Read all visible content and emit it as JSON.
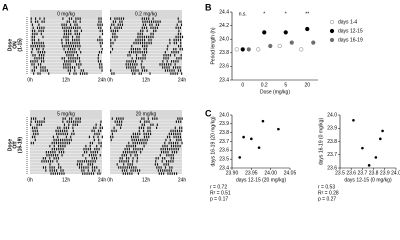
{
  "panel_labels": [
    "A",
    "B",
    "C"
  ],
  "actograms": {
    "titles": [
      "0 mg/kg",
      "0.2 mg/kg",
      "5 mg/kg",
      "20 mg/kg"
    ],
    "time_ticks": [
      "0h",
      "12h",
      "24h"
    ],
    "on_label": [
      "Dose",
      "ON",
      "(1-15)"
    ],
    "off_label": [
      "Dose",
      "Off",
      "(16-19)"
    ]
  },
  "chart_data": [
    {
      "type": "dot",
      "categories": [
        "0",
        "0.2",
        "5",
        "20"
      ],
      "xlabel": "Dose (mg/kg)",
      "ylabel": "Period length (h)",
      "ylim": [
        23.4,
        24.4
      ],
      "yticks": [
        23.4,
        23.6,
        23.8,
        {
          "value": 24,
          "label": "24.0"
        },
        24.2,
        24.4
      ],
      "series": [
        {
          "name": "days 1-4",
          "color": "#9a9a9a",
          "values": [
            23.85,
            23.85,
            23.9,
            23.85
          ]
        },
        {
          "name": "days 12-15",
          "color": "#000000",
          "values": [
            23.85,
            24.1,
            24.1,
            24.15
          ]
        },
        {
          "name": "days 16-19",
          "color": "#6e6e6e",
          "values": [
            23.85,
            23.9,
            23.95,
            23.95
          ]
        }
      ],
      "annotations": [
        "n.s.",
        "*",
        "*",
        "**"
      ],
      "legend": "right"
    },
    {
      "type": "scatter",
      "xlabel": "days 12-15 (20 mg/kg)",
      "ylabel": "days 16-19 (20 mg/kg)",
      "x": [
        23.92,
        23.93,
        23.95,
        23.97,
        23.98,
        24.02
      ],
      "values": [
        23.52,
        23.75,
        23.73,
        23.63,
        23.93,
        23.84
      ],
      "color": "#000000",
      "xlim": [
        23.9,
        24.05
      ],
      "xticks": [
        {
          "value": 23.9,
          "label": "23.90"
        },
        23.95,
        {
          "value": 24,
          "label": "24.00"
        },
        24.05
      ],
      "ylim": [
        23.4,
        24.0
      ],
      "yticks": [
        23.4,
        23.5,
        23.6,
        23.7,
        23.8,
        23.9,
        {
          "value": 24,
          "label": "24.0"
        }
      ],
      "stats": [
        "r = 0.72",
        "R² = 0.51",
        "p = 0.17"
      ]
    },
    {
      "type": "scatter",
      "xlabel": "days 12-15 (0 mg/kg)",
      "ylabel": "days 16-19 (0 mg/kg)",
      "x": [
        23.62,
        23.7,
        23.76,
        23.82,
        23.86,
        23.88
      ],
      "values": [
        23.96,
        23.75,
        23.62,
        23.68,
        23.82,
        23.88
      ],
      "color": "#000000",
      "xlim": [
        23.5,
        24.0
      ],
      "xticks": [
        23.5,
        23.6,
        23.7,
        23.8,
        23.9,
        {
          "value": 24,
          "label": "24.0"
        }
      ],
      "ylim": [
        23.6,
        24.0
      ],
      "yticks": [
        23.6,
        23.7,
        23.8,
        23.9,
        {
          "value": 24,
          "label": "24.0"
        }
      ],
      "stats": [
        "r = 0.53",
        "R² = 0.28",
        "p = 0.27"
      ]
    }
  ]
}
